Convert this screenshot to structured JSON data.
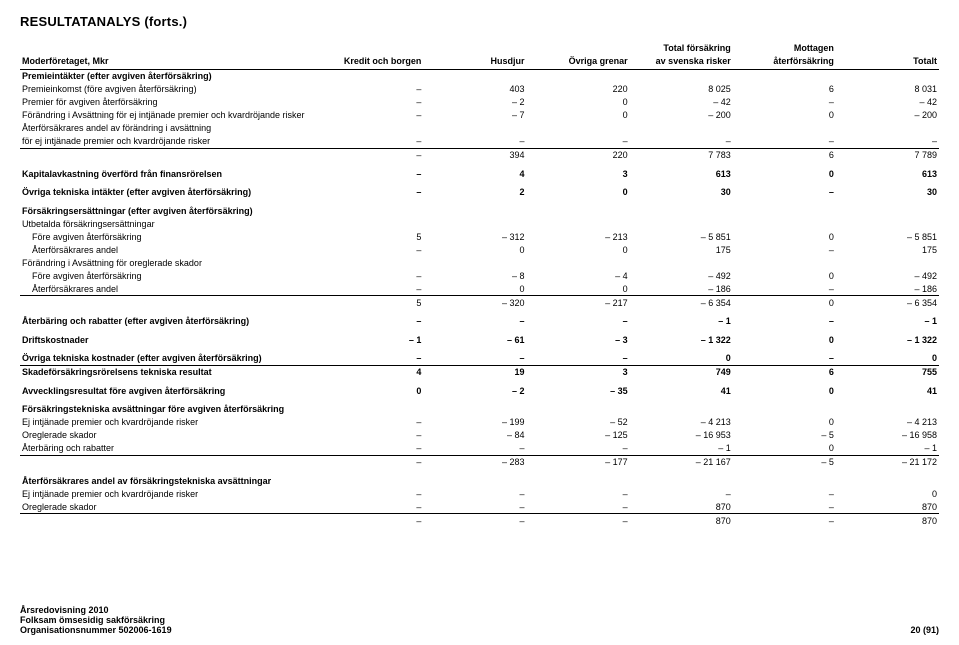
{
  "title": "RESULTATANALYS (forts.)",
  "columns": {
    "c0": "Moderföretaget, Mkr",
    "c1": "Kredit och borgen",
    "c2": "Husdjur",
    "c3": "Övriga grenar",
    "c4a": "Total försäkring",
    "c4b": "av svenska risker",
    "c5a": "Mottagen",
    "c5b": "återförsäkring",
    "c6": "Totalt"
  },
  "rows": [
    {
      "t": "bold",
      "l": "Premieintäkter (efter avgiven återförsäkring)"
    },
    {
      "l": "Premieinkomst (före avgiven återförsäkring)",
      "v": [
        "–",
        "403",
        "220",
        "8 025",
        "6",
        "8 031"
      ]
    },
    {
      "l": "Premier för avgiven återförsäkring",
      "v": [
        "–",
        "– 2",
        "0",
        "– 42",
        "–",
        "– 42"
      ]
    },
    {
      "l": "Förändring i Avsättning för ej intjänade premier och kvardröjande risker",
      "v": [
        "–",
        "– 7",
        "0",
        "– 200",
        "0",
        "– 200"
      ]
    },
    {
      "l": "Återförsäkrares andel av förändring i avsättning"
    },
    {
      "l": "för ej intjänade premier och kvardröjande risker",
      "v": [
        "–",
        "–",
        "–",
        "–",
        "–",
        "–"
      ]
    },
    {
      "t": "sub",
      "l": "",
      "v": [
        "–",
        "394",
        "220",
        "7 783",
        "6",
        "7 789"
      ]
    },
    {
      "t": "spacer bold",
      "l": "Kapitalavkastning överförd från finansrörelsen",
      "v": [
        "–",
        "4",
        "3",
        "613",
        "0",
        "613"
      ]
    },
    {
      "t": "spacer bold",
      "l": "Övriga tekniska intäkter (efter avgiven återförsäkring)",
      "v": [
        "–",
        "2",
        "0",
        "30",
        "–",
        "30"
      ]
    },
    {
      "t": "spacer bold",
      "l": "Försäkringsersättningar (efter avgiven återförsäkring)"
    },
    {
      "l": "Utbetalda försäkringsersättningar"
    },
    {
      "t": "indent",
      "l": "Före avgiven återförsäkring",
      "v": [
        "5",
        "– 312",
        "– 213",
        "– 5 851",
        "0",
        "– 5 851"
      ]
    },
    {
      "t": "indent",
      "l": "Återförsäkrares andel",
      "v": [
        "–",
        "0",
        "0",
        "175",
        "–",
        "175"
      ]
    },
    {
      "l": "Förändring i Avsättning för oreglerade skador"
    },
    {
      "t": "indent",
      "l": "Före avgiven återförsäkring",
      "v": [
        "–",
        "– 8",
        "– 4",
        "– 492",
        "0",
        "– 492"
      ]
    },
    {
      "t": "indent",
      "l": "Återförsäkrares andel",
      "v": [
        "–",
        "0",
        "0",
        "– 186",
        "–",
        "– 186"
      ]
    },
    {
      "t": "sub",
      "l": "",
      "v": [
        "5",
        "– 320",
        "– 217",
        "– 6 354",
        "0",
        "– 6 354"
      ]
    },
    {
      "t": "spacer bold",
      "l": "Återbäring och rabatter (efter avgiven återförsäkring)",
      "v": [
        "–",
        "–",
        "–",
        "– 1",
        "–",
        "– 1"
      ]
    },
    {
      "t": "spacer bold",
      "l": "Driftskostnader",
      "v": [
        "– 1",
        "– 61",
        "– 3",
        "– 1 322",
        "0",
        "– 1 322"
      ]
    },
    {
      "t": "spacer bold",
      "l": "Övriga tekniska kostnader (efter avgiven återförsäkring)",
      "v": [
        "–",
        "–",
        "–",
        "0",
        "–",
        "0"
      ]
    },
    {
      "t": "boldline",
      "l": "Skadeförsäkringsrörelsens tekniska resultat",
      "v": [
        "4",
        "19",
        "3",
        "749",
        "6",
        "755"
      ]
    },
    {
      "t": "spacer bold",
      "l": "Avvecklingsresultat före avgiven återförsäkring",
      "v": [
        "0",
        "– 2",
        "– 35",
        "41",
        "0",
        "41"
      ]
    },
    {
      "t": "spacer bold",
      "l": "Försäkringstekniska avsättningar före avgiven återförsäkring"
    },
    {
      "l": "Ej intjänade premier och kvardröjande risker",
      "v": [
        "–",
        "– 199",
        "– 52",
        "– 4 213",
        "0",
        "– 4 213"
      ]
    },
    {
      "l": "Oreglerade skador",
      "v": [
        "–",
        "– 84",
        "– 125",
        "– 16 953",
        "– 5",
        "– 16 958"
      ]
    },
    {
      "l": "Återbäring och rabatter",
      "v": [
        "–",
        "–",
        "–",
        "– 1",
        "0",
        "– 1"
      ]
    },
    {
      "t": "sub",
      "l": "",
      "v": [
        "–",
        "– 283",
        "– 177",
        "– 21 167",
        "– 5",
        "– 21 172"
      ]
    },
    {
      "t": "spacer bold",
      "l": "Återförsäkrares andel av försäkringstekniska avsättningar"
    },
    {
      "l": "Ej intjänade premier och kvardröjande risker",
      "v": [
        "–",
        "–",
        "–",
        "–",
        "–",
        "0"
      ]
    },
    {
      "l": "Oreglerade skador",
      "v": [
        "–",
        "–",
        "–",
        "870",
        "–",
        "870"
      ]
    },
    {
      "t": "sub",
      "l": "",
      "v": [
        "–",
        "–",
        "–",
        "870",
        "–",
        "870"
      ]
    }
  ],
  "footer": {
    "l1": "Årsredovisning 2010",
    "l2": "Folksam ömsesidig sakförsäkring",
    "l3": "Organisationsnummer 502006-1619",
    "pg": "20 (91)"
  }
}
